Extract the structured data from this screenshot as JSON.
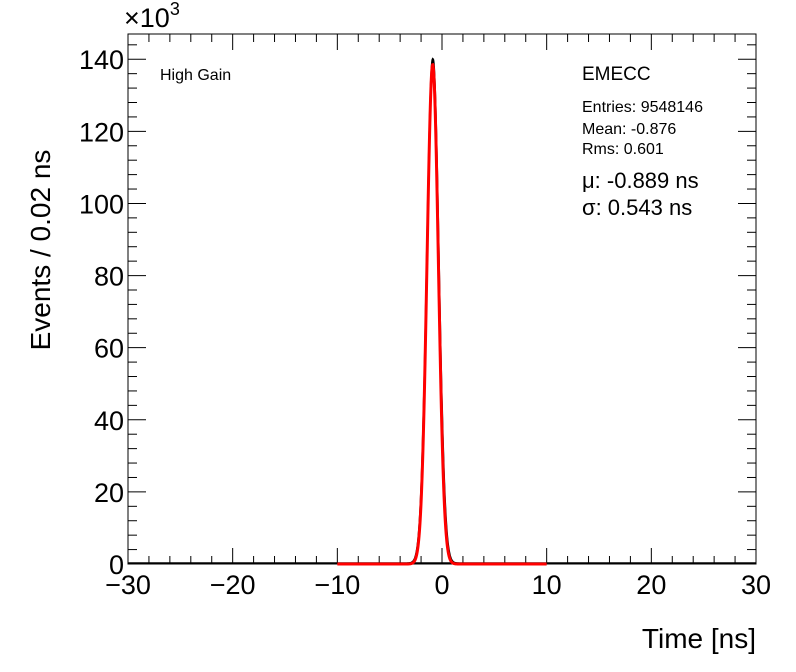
{
  "chart_data": {
    "type": "line",
    "multiplier_label": "×10",
    "multiplier_exponent": "3",
    "xlabel": "Time [ns]",
    "ylabel": "Events / 0.02 ns",
    "xlim": [
      -30,
      30
    ],
    "ylim": [
      0,
      147
    ],
    "x_ticks": [
      -30,
      -20,
      -10,
      0,
      10,
      20,
      30
    ],
    "x_tick_labels": [
      "−30",
      "−20",
      "−10",
      "0",
      "10",
      "20",
      "30"
    ],
    "y_ticks": [
      0,
      20,
      40,
      60,
      80,
      100,
      120,
      140
    ],
    "y_tick_labels": [
      "0",
      "20",
      "40",
      "60",
      "80",
      "100",
      "120",
      "140"
    ],
    "annotations": {
      "gain": "High Gain",
      "name": "EMECC",
      "entries": "Entries: 9548146",
      "mean": "Mean: -0.876",
      "rms": "Rms: 0.601",
      "mu": "μ: -0.889 ns",
      "sigma": "σ: 0.543 ns"
    },
    "series": [
      {
        "style": "histogram",
        "color": "#000000",
        "mean": -0.876,
        "rms": 0.601,
        "peak": 140,
        "range": [
          -3.5,
          2.5
        ]
      },
      {
        "style": "fit",
        "color": "#ff0000",
        "mean": -0.889,
        "sigma": 0.543,
        "peak": 138.5,
        "range": [
          -10,
          10
        ]
      }
    ]
  }
}
